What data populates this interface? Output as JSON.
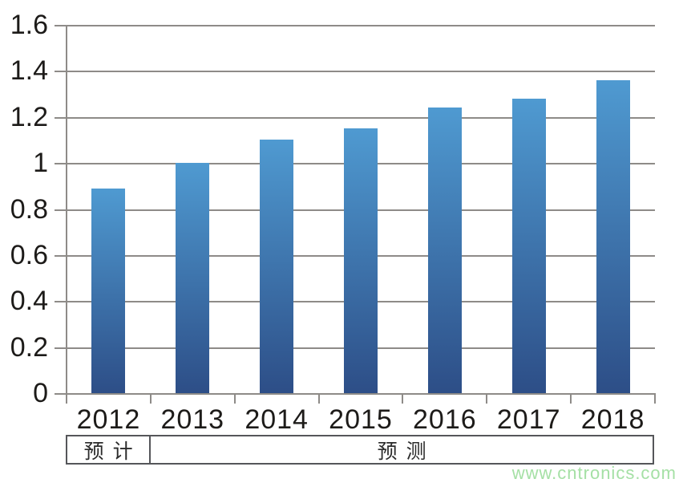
{
  "chart_data": {
    "type": "bar",
    "title": "",
    "xlabel": "",
    "ylabel": "",
    "categories": [
      "2012",
      "2013",
      "2014",
      "2015",
      "2016",
      "2017",
      "2018"
    ],
    "values": [
      0.89,
      1.0,
      1.1,
      1.15,
      1.24,
      1.28,
      1.36
    ],
    "ylim": [
      0,
      1.6
    ],
    "y_ticks": [
      0,
      0.2,
      0.4,
      0.6,
      0.8,
      1,
      1.2,
      1.4,
      1.6
    ],
    "y_tick_labels": [
      "0",
      "0.2",
      "0.4",
      "0.6",
      "0.8",
      "1",
      "1.2",
      "1.4",
      "1.6"
    ],
    "grid": true,
    "legend": false,
    "bar_color_top": "#4f9ad1",
    "bar_color_bottom": "#2d4e87",
    "gridline_color": "#8e8b88"
  },
  "annotation_row": {
    "cells": [
      {
        "label": "预计",
        "span": 1
      },
      {
        "label": "预测",
        "span": 6
      }
    ]
  },
  "watermark": {
    "text": "www.cntronics.com",
    "color": "#a5e0a5"
  }
}
